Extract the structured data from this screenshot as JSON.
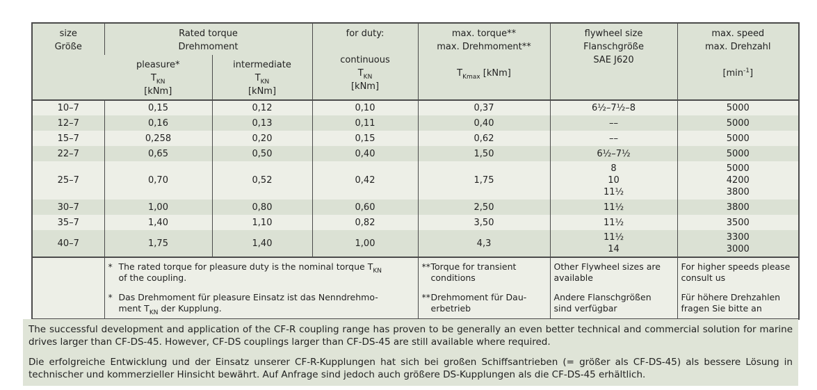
{
  "colors": {
    "border": "#4a4a4a",
    "text": "#222222",
    "row_light": "#edefe7",
    "row_dark": "#dbe1d4",
    "header_bg": "#dce2d5",
    "note_bg": "#dfe4d7"
  },
  "table": {
    "header": {
      "size": "size\nGröße",
      "rated_torque": "Rated torque\nDrehmoment",
      "pleasure": "pleasure*\nT_{KN}\n[kNm]",
      "intermediate": "intermediate\nT_{KN}\n[kNm]",
      "duty": "for duty:\n\ncontinuous\nT_{KN}\n[kNm]",
      "max_torque": "max. torque**\nmax. Drehmoment**\n\nT_{Kmax} [kNm]",
      "flywheel": "flywheel size\nFlanschgröße\nSAE J620",
      "max_speed": "max. speed\nmax. Drehzahl\n\n[min^{-1}]"
    },
    "rows": [
      {
        "size": "10–7",
        "pleasure": "0,15",
        "intermediate": "0,12",
        "continuous": "0,10",
        "max_torque": "0,37",
        "flywheel": "6½–7½–8",
        "max_speed": "5000"
      },
      {
        "size": "12–7",
        "pleasure": "0,16",
        "intermediate": "0,13",
        "continuous": "0,11",
        "max_torque": "0,40",
        "flywheel": "––",
        "max_speed": "5000"
      },
      {
        "size": "15–7",
        "pleasure": "0,258",
        "intermediate": "0,20",
        "continuous": "0,15",
        "max_torque": "0,62",
        "flywheel": "––",
        "max_speed": "5000"
      },
      {
        "size": "22–7",
        "pleasure": "0,65",
        "intermediate": "0,50",
        "continuous": "0,40",
        "max_torque": "1,50",
        "flywheel": "6½–7½",
        "max_speed": "5000"
      },
      {
        "size": "25–7",
        "pleasure": "0,70",
        "intermediate": "0,52",
        "continuous": "0,42",
        "max_torque": "1,75",
        "flywheel": "8\n10\n11½",
        "max_speed": "5000\n4200\n3800"
      },
      {
        "size": "30–7",
        "pleasure": "1,00",
        "intermediate": "0,80",
        "continuous": "0,60",
        "max_torque": "2,50",
        "flywheel": "11½",
        "max_speed": "3800"
      },
      {
        "size": "35–7",
        "pleasure": "1,40",
        "intermediate": "1,10",
        "continuous": "0,82",
        "max_torque": "3,50",
        "flywheel": "11½",
        "max_speed": "3500"
      },
      {
        "size": "40–7",
        "pleasure": "1,75",
        "intermediate": "1,40",
        "continuous": "1,00",
        "max_torque": "4,3",
        "flywheel": "11½\n14",
        "max_speed": "3300\n3000"
      }
    ],
    "footnotes": {
      "star": {
        "marker": "*",
        "en": "The rated torque for pleasure duty is the nominal torque T_{KN}\nof the coupling.",
        "de": "Das Drehmoment für pleasure Einsatz ist das Nenndrehmo-\nment T_{KN} der Kupplung."
      },
      "double_star": {
        "marker": "**",
        "en": "Torque for transient\nconditions",
        "de": "Drehmoment für Dau-\nerbetrieb"
      },
      "flywheel": {
        "en": "Other Flywheel sizes are\navailable",
        "de": "Andere Flanschgrößen\nsind verfügbar"
      },
      "speed": {
        "en": "For higher speeds please\nconsult us",
        "de": "Für höhere Drehzahlen\nfragen Sie bitte an"
      }
    }
  },
  "notes": {
    "en": "The successful development and application of the CF-R coupling range has proven to be generally an even better technical and commercial solution for marine drives larger than CF-DS-45. However, CF-DS couplings larger than CF-DS-45 are still available where required.",
    "de": "Die erfolgreiche Entwicklung und der Einsatz unserer CF-R-Kupplungen hat sich bei großen Schiffsantrieben (= größer als CF-DS-45) als bessere Lösung in technischer und kommerzieller Hinsicht bewährt. Auf Anfrage sind jedoch auch größere DS-Kupplungen als die CF-DS-45 erhältlich."
  }
}
